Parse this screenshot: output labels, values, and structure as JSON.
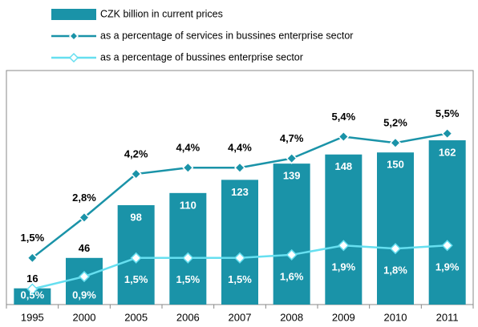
{
  "chart_data": {
    "type": "combo",
    "categories": [
      "1995",
      "2000",
      "2005",
      "2006",
      "2007",
      "2008",
      "2009",
      "2010",
      "2011"
    ],
    "series": [
      {
        "name": "CZK billion in current prices",
        "type": "bar",
        "color": "#1a93a8",
        "values": [
          16,
          46,
          98,
          110,
          123,
          139,
          148,
          150,
          162
        ]
      },
      {
        "name": "as a percentage of services in bussines enterprise sector",
        "type": "line",
        "axis": "y2",
        "color": "#1a93a8",
        "values": [
          1.5,
          2.8,
          4.2,
          4.4,
          4.4,
          4.7,
          5.4,
          5.2,
          5.5
        ],
        "value_labels": [
          "1,5%",
          "2,8%",
          "4,2%",
          "4,4%",
          "4,4%",
          "4,7%",
          "5,4%",
          "5,2%",
          "5,5%"
        ]
      },
      {
        "name": "as a percentage of bussines enterprise sector",
        "type": "line",
        "axis": "y2",
        "color": "#66dff0",
        "values": [
          0.5,
          0.9,
          1.5,
          1.5,
          1.5,
          1.6,
          1.9,
          1.8,
          1.9
        ],
        "value_labels": [
          "0,5%",
          "0,9%",
          "1,5%",
          "1,5%",
          "1,5%",
          "1,6%",
          "1,9%",
          "1,8%",
          "1,9%"
        ]
      }
    ],
    "ylim": [
      0,
      230
    ],
    "y2lim": [
      0,
      7.5
    ]
  }
}
